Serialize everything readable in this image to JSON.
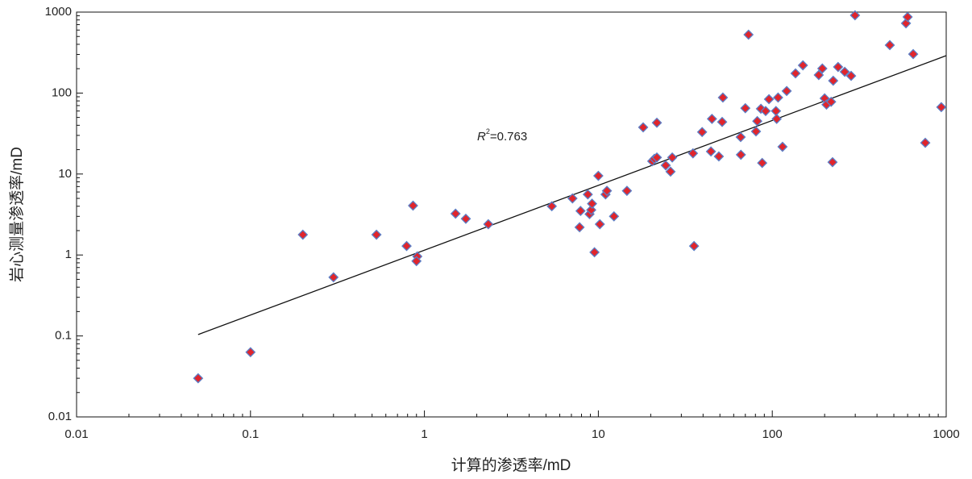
{
  "chart_data": {
    "type": "scatter",
    "x_label": "计算的渗透率/mD",
    "y_label": "岩心测量渗透率/mD",
    "annotation": {
      "symbol": "R",
      "power": "2",
      "text": "=0.763"
    },
    "x_scale": "log",
    "y_scale": "log",
    "xlim": [
      0.01,
      1000
    ],
    "ylim": [
      0.01,
      1000
    ],
    "xticks": [
      0.01,
      0.1,
      1,
      10,
      100,
      1000
    ],
    "yticks": [
      0.01,
      0.1,
      1,
      10,
      100,
      1000
    ],
    "marker_color": "#e0252c",
    "marker_edge_color": "#5b7ec6",
    "trendline": {
      "x": [
        0.05,
        1000
      ],
      "y": [
        0.104,
        290
      ],
      "color": "#111111"
    },
    "x": [
      0.05,
      0.1,
      0.2,
      0.3,
      0.53,
      0.79,
      0.86,
      0.91,
      0.9,
      1.51,
      1.73,
      2.33,
      5.4,
      7.1,
      7.8,
      7.9,
      8.7,
      8.9,
      9.1,
      9.2,
      9.5,
      10,
      10.2,
      11,
      11.2,
      12.3,
      14.6,
      18.1,
      20.4,
      21,
      21.7,
      21.7,
      24.4,
      26,
      26.6,
      35,
      35.5,
      39.5,
      44.4,
      45,
      49.3,
      51.5,
      52,
      65.8,
      66,
      70,
      73,
      80.6,
      82,
      86,
      87.5,
      91.6,
      95.7,
      105,
      106,
      108,
      114.5,
      121,
      136,
      150,
      185,
      194,
      200,
      205,
      218,
      222,
      224,
      239,
      261,
      284,
      299,
      474,
      587,
      600,
      646,
      758,
      937
    ],
    "y": [
      0.03,
      0.063,
      1.78,
      0.53,
      1.78,
      1.29,
      4.07,
      0.96,
      0.84,
      3.24,
      2.8,
      2.4,
      4.0,
      5.0,
      2.2,
      3.5,
      5.6,
      3.2,
      3.6,
      4.3,
      1.08,
      9.5,
      2.4,
      5.6,
      6.2,
      3.0,
      6.2,
      37.7,
      14.4,
      15.4,
      43,
      16,
      12.8,
      10.7,
      16,
      18,
      1.29,
      33,
      19,
      48,
      16.5,
      44,
      88,
      28.6,
      17.3,
      65,
      526,
      33.6,
      45,
      64,
      13.7,
      60,
      84,
      60,
      48,
      88,
      21.7,
      106,
      175,
      220,
      167,
      201,
      86,
      72,
      78,
      14,
      142,
      210,
      183,
      163,
      912,
      391,
      727,
      871,
      303,
      24.3,
      67
    ]
  }
}
